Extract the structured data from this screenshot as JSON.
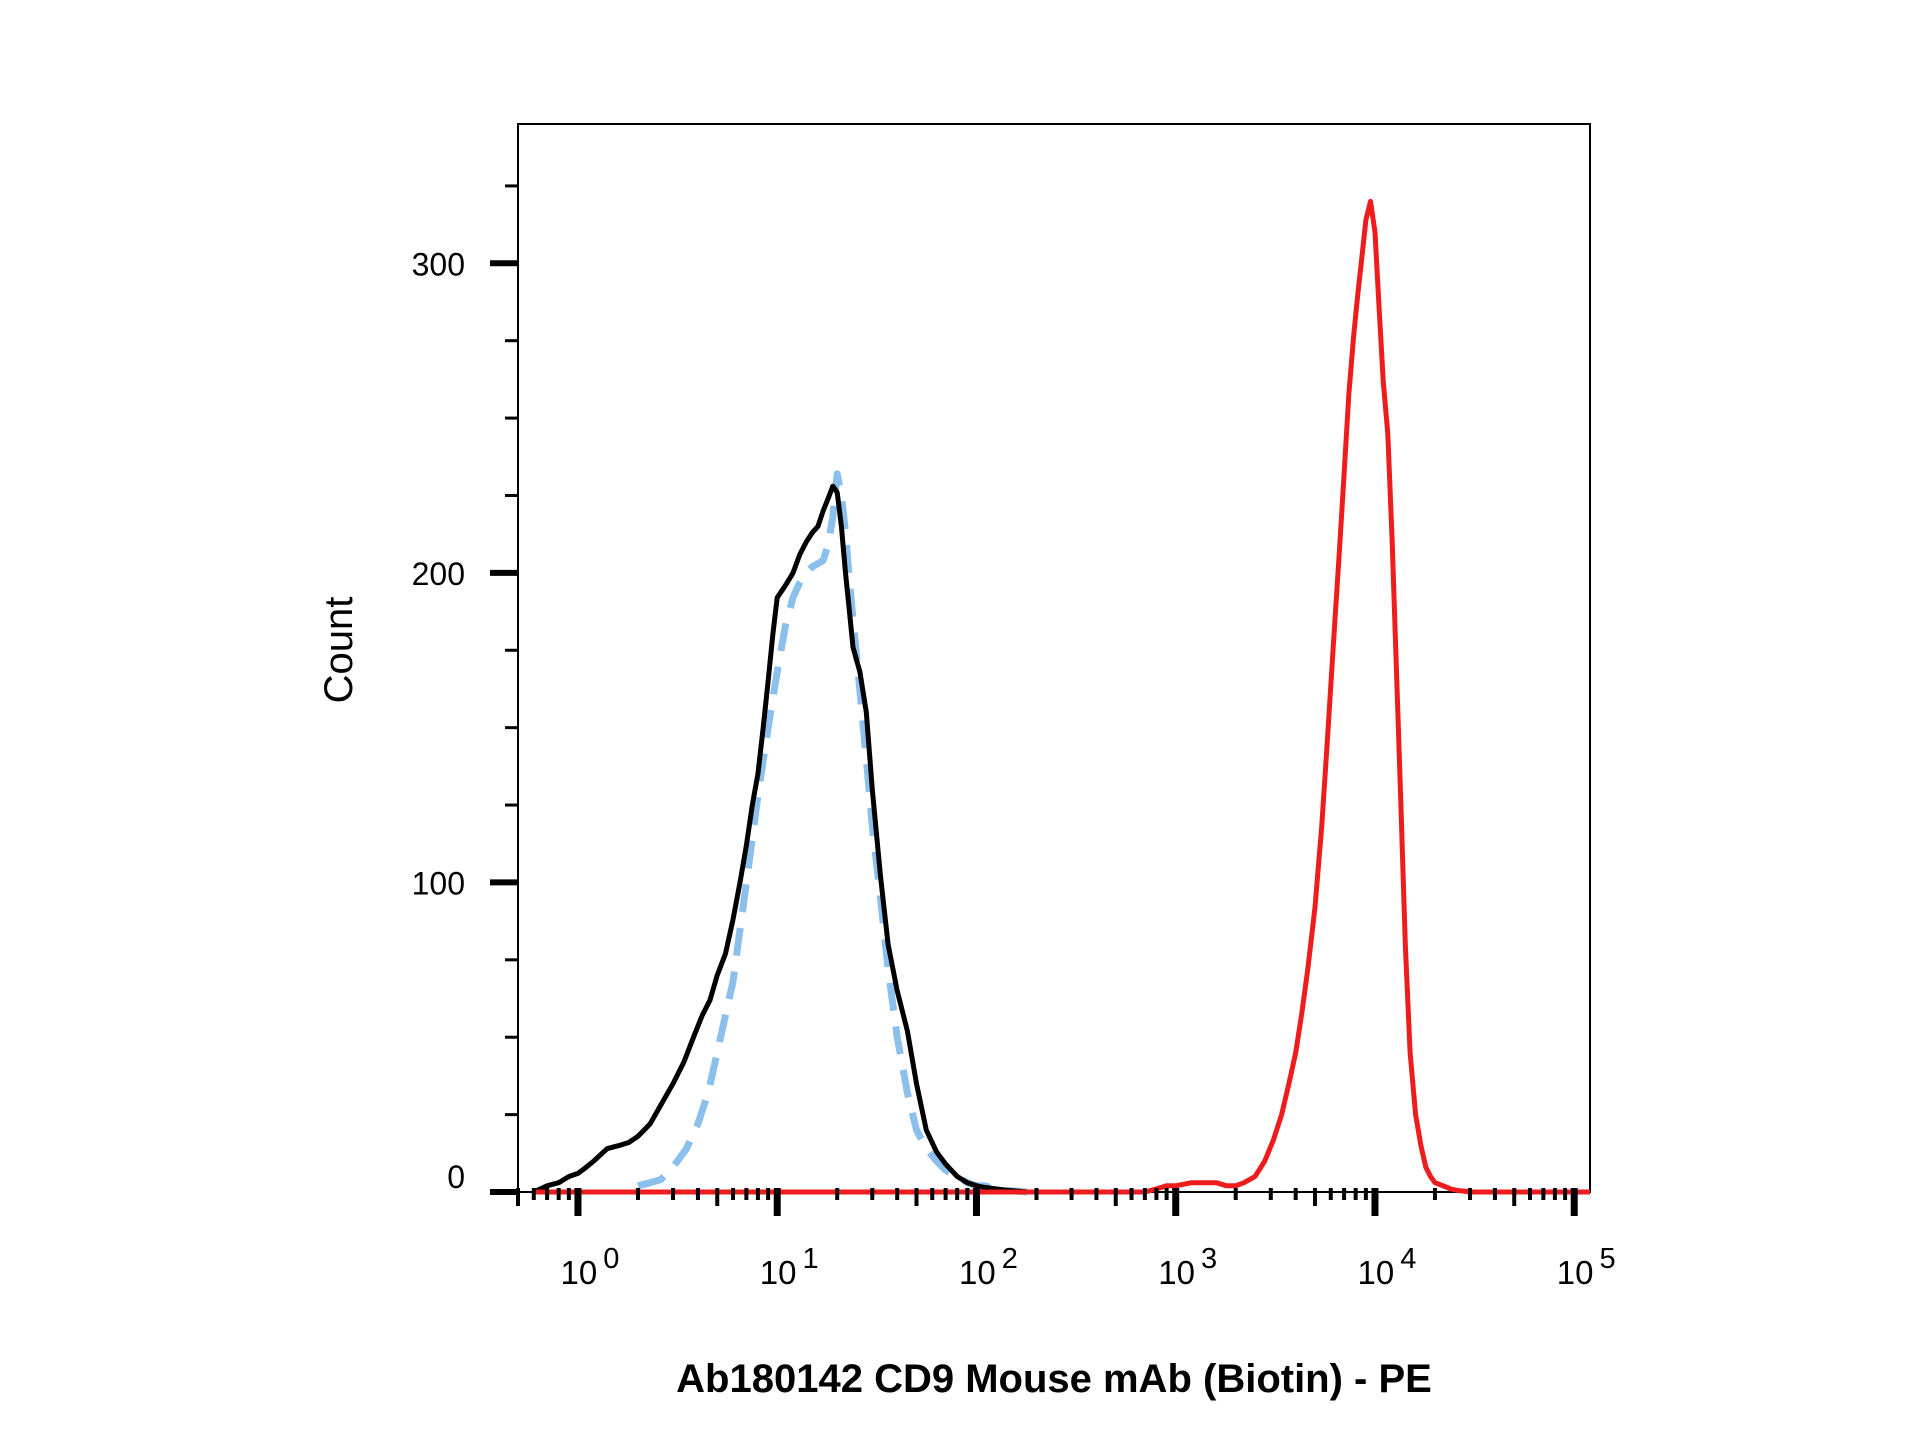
{
  "chart_data": {
    "type": "line",
    "title": "",
    "xlabel": "Ab180142 CD9 Mouse mAb (Biotin) - PE",
    "ylabel": "Count",
    "x_scale": "log",
    "xlim": [
      0.5,
      120000
    ],
    "ylim": [
      0,
      345
    ],
    "grid": false,
    "legend": "none",
    "x_ticks": [
      {
        "value": 1,
        "base": "10",
        "exp": "0"
      },
      {
        "value": 10,
        "base": "10",
        "exp": "1"
      },
      {
        "value": 100,
        "base": "10",
        "exp": "2"
      },
      {
        "value": 1000,
        "base": "10",
        "exp": "3"
      },
      {
        "value": 10000,
        "base": "10",
        "exp": "4"
      },
      {
        "value": 100000,
        "base": "10",
        "exp": "5"
      }
    ],
    "y_ticks": [
      {
        "value": 0,
        "label": "0"
      },
      {
        "value": 100,
        "label": "100"
      },
      {
        "value": 200,
        "label": "200"
      },
      {
        "value": 300,
        "label": "300"
      }
    ],
    "series": [
      {
        "color": "#8bbfec",
        "style": "dashed",
        "x": [
          2,
          2.3,
          2.6,
          3,
          3.5,
          4,
          4.5,
          5,
          6,
          7,
          8,
          9,
          10,
          11,
          12,
          13,
          14,
          15,
          16,
          17,
          18,
          19,
          20,
          21,
          22,
          23,
          24,
          26,
          28,
          30,
          33,
          36,
          40,
          45,
          50,
          56,
          63,
          70,
          80,
          90,
          100,
          110,
          125,
          140,
          160,
          180
        ],
        "y": [
          2,
          3,
          4,
          8,
          14,
          22,
          32,
          45,
          68,
          100,
          128,
          150,
          168,
          183,
          192,
          197,
          200,
          202,
          203,
          204,
          209,
          218,
          232,
          225,
          213,
          198,
          185,
          162,
          140,
          118,
          95,
          72,
          50,
          32,
          20,
          14,
          10,
          7,
          5,
          3,
          2,
          2,
          1,
          0.5,
          0.3,
          0
        ]
      },
      {
        "color": "#000000",
        "style": "solid",
        "x": [
          0.6,
          0.7,
          0.8,
          0.9,
          1.0,
          1.1,
          1.2,
          1.4,
          1.6,
          1.8,
          2.0,
          2.3,
          2.6,
          3.0,
          3.4,
          3.8,
          4.2,
          4.6,
          5.0,
          5.5,
          6.0,
          6.5,
          7.0,
          7.5,
          8.0,
          8.5,
          9.0,
          9.5,
          10,
          11,
          12,
          13,
          14,
          15,
          16,
          17,
          18,
          19,
          20,
          21,
          22,
          23,
          24,
          26,
          28,
          30,
          33,
          36,
          40,
          45,
          50,
          56,
          63,
          70,
          80,
          90,
          100,
          110,
          125,
          140,
          160,
          180,
          200
        ],
        "y": [
          0,
          2,
          3,
          5,
          6,
          8,
          10,
          14,
          15,
          16,
          18,
          22,
          28,
          35,
          42,
          50,
          57,
          62,
          70,
          77,
          88,
          100,
          112,
          125,
          135,
          150,
          165,
          180,
          192,
          196,
          200,
          206,
          210,
          213,
          215,
          220,
          224,
          228,
          226,
          215,
          200,
          188,
          176,
          168,
          155,
          130,
          102,
          80,
          65,
          52,
          35,
          20,
          13,
          9,
          5,
          3,
          2,
          1.5,
          1,
          0.6,
          0.3,
          0,
          0
        ]
      },
      {
        "color": "#ee1c1c",
        "style": "solid",
        "x": [
          0.6,
          700,
          800,
          900,
          1000,
          1200,
          1400,
          1600,
          1800,
          2000,
          2200,
          2500,
          2800,
          3100,
          3400,
          3700,
          4000,
          4300,
          4600,
          5000,
          5400,
          5800,
          6200,
          6600,
          7000,
          7400,
          7800,
          8200,
          8600,
          9000,
          9500,
          10000,
          10500,
          11000,
          11600,
          12200,
          12800,
          13500,
          14200,
          15000,
          16000,
          17000,
          18000,
          19000,
          20000,
          22000,
          24000,
          26000,
          28000,
          30000,
          40000,
          60000,
          100000,
          120000
        ],
        "y": [
          0,
          0,
          1,
          2,
          2,
          3,
          3,
          3,
          2,
          2,
          3,
          5,
          10,
          17,
          25,
          35,
          45,
          58,
          72,
          92,
          118,
          148,
          178,
          205,
          232,
          258,
          276,
          290,
          302,
          314,
          320,
          310,
          285,
          262,
          245,
          210,
          170,
          125,
          80,
          45,
          25,
          15,
          8,
          5,
          3,
          2,
          1,
          0.5,
          0.3,
          0,
          0,
          0,
          0,
          0
        ]
      }
    ]
  }
}
